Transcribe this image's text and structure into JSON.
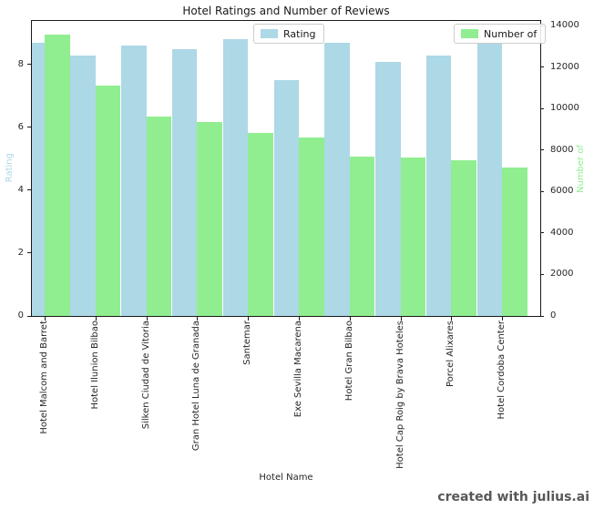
{
  "watermark": "created with julius.ai",
  "chart_data": {
    "type": "bar",
    "title": "Hotel Ratings and Number of Reviews",
    "xlabel": "Hotel Name",
    "grid": false,
    "categories": [
      "Hotel Malcom and Barret",
      "Hotel Ilunion Bilbao",
      "Silken Ciudad de Vitoria",
      "Gran Hotel Luna de Granada",
      "Santemar",
      "Exe Sevilla Macarena",
      "Hotel Gran Bilbao",
      "Hotel Cap Roig by Brava Hoteles",
      "Porcel Alixares",
      "Hotel Cordoba Center"
    ],
    "series": [
      {
        "name": "Rating",
        "legend_label": "Rating",
        "axis": "left",
        "color": "#ADD8E6",
        "values": [
          8.7,
          8.3,
          8.6,
          8.5,
          8.8,
          7.5,
          8.7,
          8.1,
          8.3,
          8.7
        ]
      },
      {
        "name": "Number of Reviews",
        "legend_label": "Number of",
        "axis": "right",
        "color": "#90EE90",
        "values": [
          13570,
          11100,
          9640,
          9340,
          8840,
          8610,
          7710,
          7650,
          7520,
          7170
        ]
      }
    ],
    "left_axis": {
      "label": "Rating",
      "color": "#ADD8E6",
      "ticks": [
        0,
        2,
        4,
        6,
        8
      ],
      "max": 9.39
    },
    "right_axis": {
      "label": "Number of",
      "color": "#90EE90",
      "ticks": [
        0,
        2000,
        4000,
        6000,
        8000,
        10000,
        12000,
        14000
      ],
      "max": 14233
    },
    "legend_positions": [
      "upper center",
      "upper right"
    ]
  }
}
